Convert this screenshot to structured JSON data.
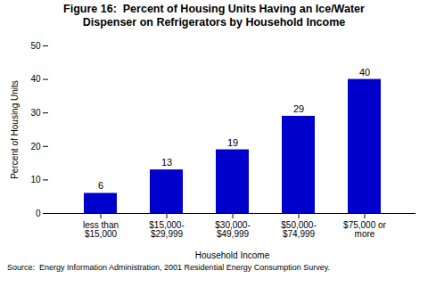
{
  "chart_data": {
    "type": "bar",
    "title": "Figure 16:  Percent of Housing Units Having an Ice/Water\nDispenser on Refrigerators by Household Income",
    "caption": "Source:  Energy Information Administration, 2001 Residential Energy Consumption Survey.",
    "xlabel": "Household Income",
    "ylabel": "Percent of Housing Units",
    "categories": [
      "less than\n$15,000",
      "$15,000-\n$29,999",
      "$30,000-\n$49,999",
      "$50,000-\n$74,999",
      "$75,000 or\nmore"
    ],
    "values": [
      6,
      13,
      19,
      29,
      40
    ],
    "color": "#0000CC",
    "ylim": [
      0,
      50
    ],
    "yticks": [
      0,
      10,
      20,
      30,
      40,
      50
    ],
    "grid": false,
    "data_labels": true
  }
}
